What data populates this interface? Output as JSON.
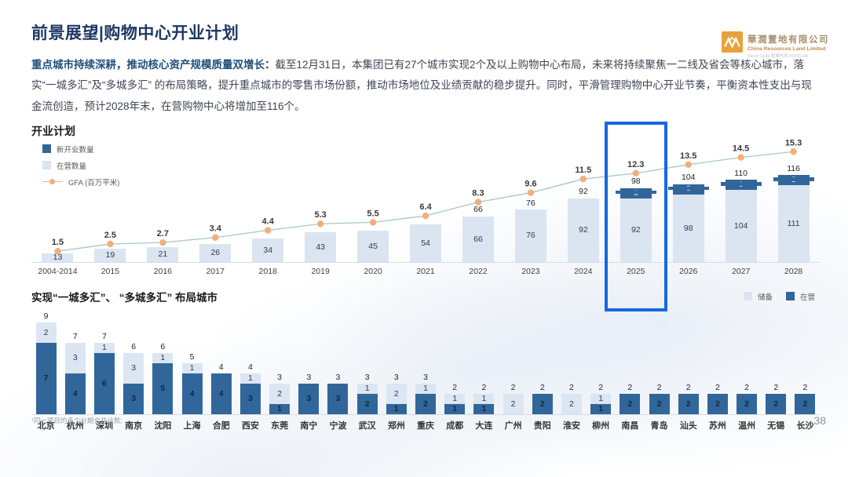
{
  "page": {
    "title": "前景展望|购物中心开业计划",
    "page_number": "38",
    "footnote": "¹同一项目的多个分期合并计数;"
  },
  "logo": {
    "icon": "crland-logo-icon",
    "company_cn": "華潤置地有限公司",
    "company_en": "China Resources Land Limited",
    "stock_line": "Stock Code 股票代码 01109.HK"
  },
  "intro": {
    "lead": "重点城市持续深耕，推动核心资产规模质量双增长：",
    "body": "截至12月31日，本集团已有27个城市实现2个及以上购物中心布局，未来将持续聚焦一二线及省会等核心城市，落实“一城多汇”及“多城多汇” 的布局策略，提升重点城市的零售市场份额，推动市场地位及业绩贡献的稳步提升。同时，平滑管理购物中心开业节奏，平衡资本性支出与现金流创造，预计2028年末，在营购物中心将增加至116个。"
  },
  "colors": {
    "title_navy": "#1F3864",
    "bar_dark": "#31669B",
    "bar_light": "#DBE5F1",
    "line": "#A8C8BF",
    "marker": "#F3AE79",
    "highlight_box": "#1467E0",
    "logo_orange": "#E9A13B"
  },
  "chart_data": [
    {
      "type": "bar",
      "subtype": "stacked-bars-with-line",
      "title": "开业计划",
      "legend_position": "top-left",
      "categories": [
        "2004-2014",
        "2015",
        "2016",
        "2017",
        "2018",
        "2019",
        "2020",
        "2021",
        "2022",
        "2023",
        "2024",
        "2025",
        "2026",
        "2027",
        "2028"
      ],
      "series": [
        {
          "name": "新开业数量",
          "role": "bar",
          "color": "#31669B",
          "values": [
            0,
            0,
            0,
            0,
            0,
            0,
            0,
            0,
            0,
            0,
            0,
            6,
            6,
            6,
            5
          ]
        },
        {
          "name": "在营数量",
          "role": "bar",
          "color": "#DBE5F1",
          "values": [
            13,
            19,
            21,
            26,
            34,
            43,
            45,
            54,
            66,
            76,
            92,
            92,
            98,
            104,
            111
          ]
        },
        {
          "name": "GFA (百万平米)",
          "role": "line",
          "color": "#F3AE79",
          "values": [
            1.5,
            2.5,
            2.7,
            3.4,
            4.4,
            5.3,
            5.5,
            6.4,
            8.3,
            9.6,
            11.5,
            12.3,
            13.5,
            14.5,
            15.3
          ]
        }
      ],
      "total_labels": [
        "",
        "",
        "",
        "",
        "",
        "",
        "",
        "",
        "66",
        "76",
        "92",
        "98",
        "104",
        "110",
        "116"
      ],
      "highlight": {
        "category": "2025",
        "color": "#1467E0"
      },
      "ylim_bars": [
        0,
        130
      ],
      "ylim_line": [
        0,
        17
      ],
      "grid": false
    },
    {
      "type": "bar",
      "subtype": "stacked",
      "title": "实现“一城多汇”、 “多城多汇” 布局城市",
      "legend_position": "top-right",
      "legend_order": [
        "储备",
        "在营"
      ],
      "categories": [
        "北京",
        "杭州",
        "深圳",
        "南京",
        "沈阳",
        "上海",
        "合肥",
        "西安",
        "东莞",
        "南宁",
        "宁波",
        "武汉",
        "郑州",
        "重庆",
        "成都",
        "大连",
        "广州",
        "贵阳",
        "淮安",
        "柳州",
        "南昌",
        "青岛",
        "汕头",
        "苏州",
        "温州",
        "无锡",
        "长沙"
      ],
      "series": [
        {
          "name": "在营",
          "color": "#31669B",
          "values": [
            7,
            4,
            6,
            3,
            5,
            4,
            4,
            3,
            1,
            3,
            3,
            2,
            1,
            2,
            1,
            1,
            0,
            2,
            0,
            1,
            2,
            2,
            2,
            2,
            2,
            2,
            2
          ]
        },
        {
          "name": "储备",
          "color": "#DCE6F2",
          "values": [
            2,
            3,
            1,
            3,
            1,
            1,
            0,
            1,
            2,
            0,
            0,
            1,
            2,
            1,
            1,
            1,
            2,
            0,
            2,
            1,
            0,
            0,
            0,
            0,
            0,
            0,
            0
          ]
        }
      ],
      "totals": [
        9,
        7,
        7,
        6,
        6,
        5,
        4,
        4,
        3,
        3,
        3,
        3,
        3,
        3,
        2,
        2,
        2,
        2,
        2,
        2,
        2,
        2,
        2,
        2,
        2,
        2,
        2
      ],
      "ylim": [
        0,
        10
      ],
      "grid": false
    }
  ]
}
